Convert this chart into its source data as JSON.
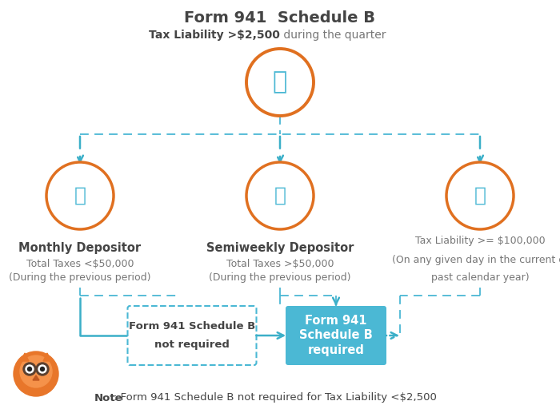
{
  "title": "Form 941  Schedule B",
  "subtitle_bold": "Tax Liability >$2,500",
  "subtitle_normal": " during the quarter",
  "bg_color": "#ffffff",
  "orange": "#E07020",
  "blue": "#4BB8D4",
  "blue_arrow": "#3BAFC8",
  "text_dark": "#444444",
  "text_gray": "#777777",
  "note_bold": "Note",
  "note_text": ": Form 941 Schedule B not required for Tax Liability <$2,500",
  "label_monthly_title": "Monthly Depositor",
  "label_monthly_sub1": "Total Taxes <$50,000",
  "label_monthly_sub2": "(During the previous period)",
  "label_semi_title": "Semiweekly Depositor",
  "label_semi_sub1": "Total Taxes >$50,000",
  "label_semi_sub2": "(During the previous period)",
  "label_right_line1": "Tax Liability >= $100,000",
  "label_right_line2": "(On any given day in the current or",
  "label_right_line3": "past calendar year)",
  "box_not_req_text1": "Form 941 Schedule B",
  "box_not_req_text2": "not required",
  "box_req_text1": "Form 941",
  "box_req_text2": "Schedule B",
  "box_req_text3": "required"
}
